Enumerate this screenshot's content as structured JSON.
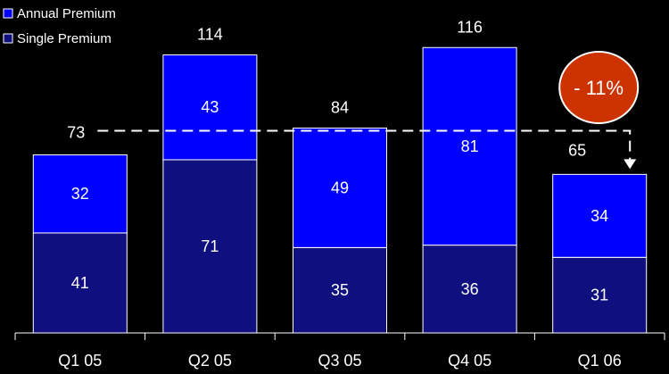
{
  "chart_data": {
    "type": "bar",
    "stacked": true,
    "categories": [
      "Q1 05",
      "Q2 05",
      "Q3 05",
      "Q4 05",
      "Q1 06"
    ],
    "series": [
      {
        "name": "Single Premium",
        "values": [
          41,
          71,
          35,
          36,
          31
        ],
        "color": "#0f0f80"
      },
      {
        "name": "Annual Premium",
        "values": [
          32,
          43,
          49,
          81,
          34
        ],
        "color": "#0000ff"
      }
    ],
    "totals": [
      73,
      114,
      84,
      116,
      65
    ],
    "ylim": [
      0,
      116
    ],
    "grid": false,
    "legend": {
      "placement": "top-left",
      "entries": [
        "Annual Premium",
        "Single Premium"
      ]
    },
    "annotation": {
      "text": "- 11%",
      "from_category": "Q1 05",
      "to_category": "Q1 06",
      "bubble_color": "#cc3300"
    }
  }
}
